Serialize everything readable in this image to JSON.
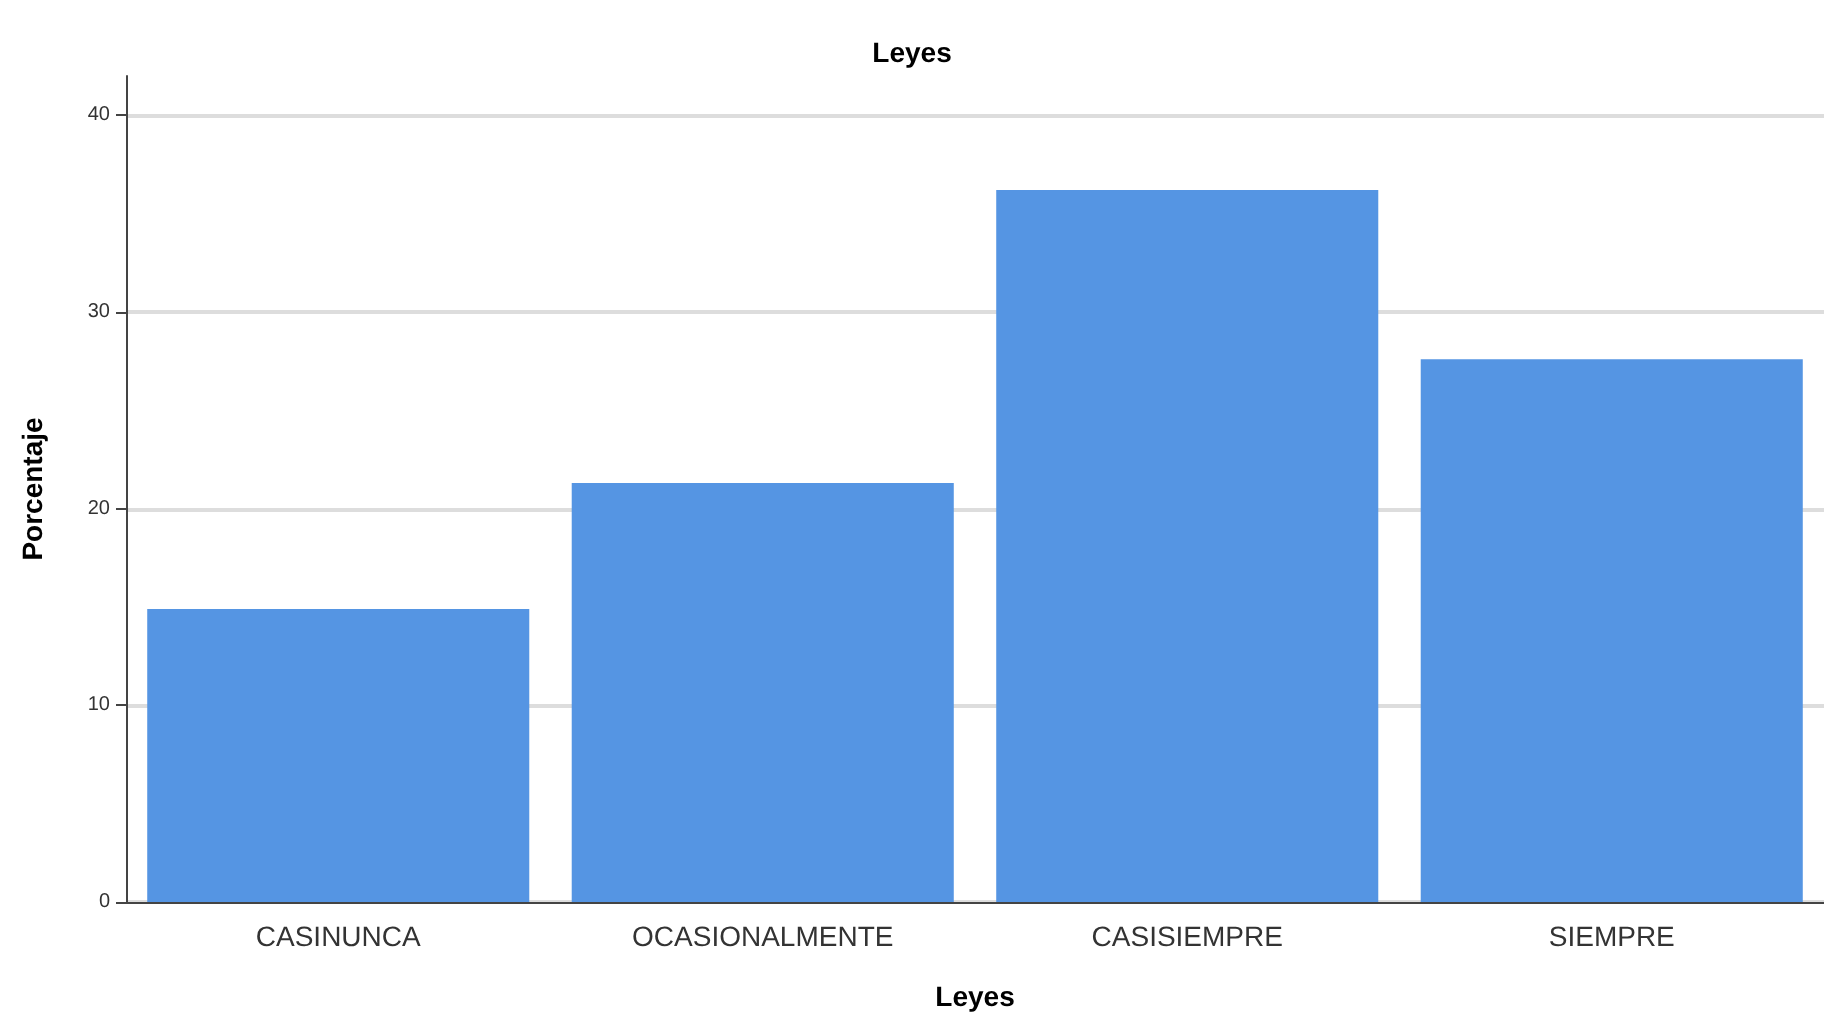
{
  "chart_data": {
    "type": "bar",
    "title": "Leyes",
    "xlabel": "Leyes",
    "ylabel": "Porcentaje",
    "categories": [
      "CASINUNCA",
      "OCASIONALMENTE",
      "CASISIEMPRE",
      "SIEMPRE"
    ],
    "values": [
      14.9,
      21.3,
      36.2,
      27.6
    ],
    "color": "#5595e3",
    "ylim": [
      0,
      42
    ],
    "yticks": [
      0,
      10,
      20,
      30,
      40
    ],
    "grid": "y"
  }
}
